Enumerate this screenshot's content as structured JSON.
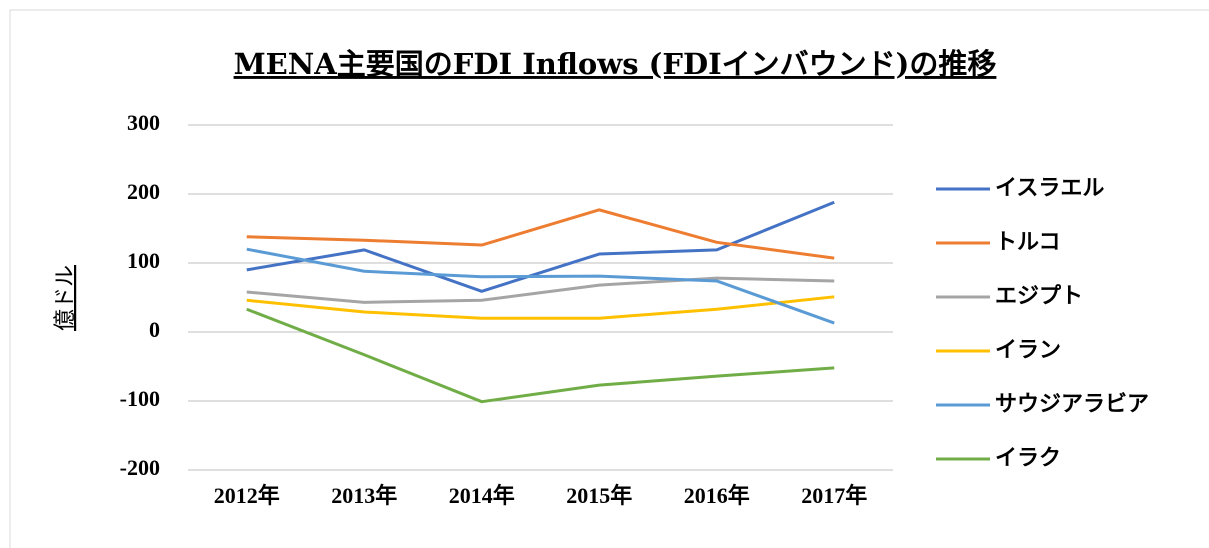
{
  "chart_data": {
    "type": "line",
    "title": "MENA主要国のFDI Inflows (FDIインバウンド)の推移",
    "y_label": "億ドル",
    "categories": [
      "2012年",
      "2013年",
      "2014年",
      "2015年",
      "2016年",
      "2017年"
    ],
    "series": [
      {
        "name": "イスラエル",
        "color": "#4472c4",
        "values": [
          90,
          119,
          59,
          113,
          119,
          188
        ]
      },
      {
        "name": "トルコ",
        "color": "#ed7d31",
        "values": [
          138,
          133,
          126,
          177,
          130,
          107
        ]
      },
      {
        "name": "エジプト",
        "color": "#a5a5a5",
        "values": [
          58,
          43,
          46,
          68,
          78,
          74
        ]
      },
      {
        "name": "イラン",
        "color": "#ffc000",
        "values": [
          46,
          29,
          20,
          20,
          33,
          51
        ]
      },
      {
        "name": "サウジアラビア",
        "color": "#5b9bd5",
        "values": [
          120,
          88,
          80,
          81,
          74,
          13
        ]
      },
      {
        "name": "イラク",
        "color": "#70ad47",
        "values": [
          33,
          -33,
          -101,
          -77,
          -64,
          -52
        ]
      }
    ],
    "ylim": [
      -200,
      300
    ],
    "yticks": [
      -200,
      -100,
      0,
      100,
      200,
      300
    ],
    "grid": true,
    "legend": "right"
  }
}
